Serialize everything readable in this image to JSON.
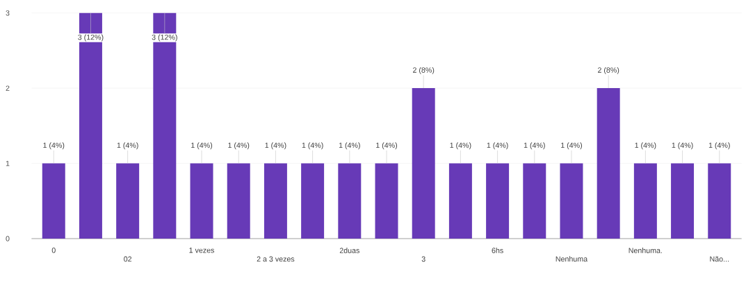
{
  "chart_data": {
    "type": "bar",
    "categories": [
      "0",
      null,
      "02",
      null,
      "1 vezes",
      null,
      "2 a 3 vezes",
      null,
      "2duas",
      null,
      "3",
      null,
      "6hs",
      null,
      "Nenhuma",
      null,
      "Nenhuma.",
      null,
      "Não..."
    ],
    "values": [
      1,
      3,
      1,
      3,
      1,
      1,
      1,
      1,
      1,
      1,
      2,
      1,
      1,
      1,
      1,
      2,
      1,
      1,
      1
    ],
    "value_labels": [
      "1 (4%)",
      "3 (12%)",
      "1 (4%)",
      "3 (12%)",
      "1 (4%)",
      "1 (4%)",
      "1 (4%)",
      "1 (4%)",
      "1 (4%)",
      "1 (4%)",
      "2 (8%)",
      "1 (4%)",
      "1 (4%)",
      "1 (4%)",
      "1 (4%)",
      "2 (8%)",
      "1 (4%)",
      "1 (4%)",
      "1 (4%)"
    ],
    "color": "#673ab7",
    "ylim": [
      0,
      3
    ],
    "yticks": [
      0,
      1,
      2,
      3
    ],
    "grid": "y"
  }
}
